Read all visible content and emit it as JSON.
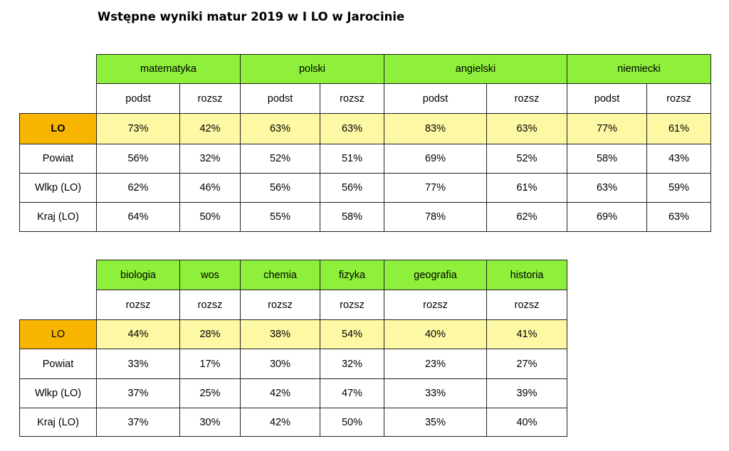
{
  "title": "Wstępne wyniki matur 2019 w I LO w Jarocinie",
  "table1": {
    "subjects": [
      "matematyka",
      "polski",
      "angielski",
      "niemiecki"
    ],
    "levels": [
      "podst",
      "rozsz",
      "podst",
      "rozsz",
      "podst",
      "rozsz",
      "podst",
      "rozsz"
    ],
    "rows": [
      {
        "label": "LO",
        "values": [
          "73%",
          "42%",
          "63%",
          "63%",
          "83%",
          "63%",
          "77%",
          "61%"
        ]
      },
      {
        "label": "Powiat",
        "values": [
          "56%",
          "32%",
          "52%",
          "51%",
          "69%",
          "52%",
          "58%",
          "43%"
        ]
      },
      {
        "label": "Wlkp (LO)",
        "values": [
          "62%",
          "46%",
          "56%",
          "56%",
          "77%",
          "61%",
          "63%",
          "59%"
        ]
      },
      {
        "label": "Kraj (LO)",
        "values": [
          "64%",
          "50%",
          "55%",
          "58%",
          "78%",
          "62%",
          "69%",
          "63%"
        ]
      }
    ]
  },
  "table2": {
    "subjects": [
      "biologia",
      "wos",
      "chemia",
      "fizyka",
      "geografia",
      "historia"
    ],
    "levels": [
      "rozsz",
      "rozsz",
      "rozsz",
      "rozsz",
      "rozsz",
      "rozsz"
    ],
    "rows": [
      {
        "label": "LO",
        "values": [
          "44%",
          "28%",
          "38%",
          "54%",
          "40%",
          "41%"
        ]
      },
      {
        "label": "Powiat",
        "values": [
          "33%",
          "17%",
          "30%",
          "32%",
          "23%",
          "27%"
        ]
      },
      {
        "label": "Wlkp (LO)",
        "values": [
          "37%",
          "25%",
          "42%",
          "47%",
          "33%",
          "39%"
        ]
      },
      {
        "label": "Kraj (LO)",
        "values": [
          "37%",
          "30%",
          "42%",
          "50%",
          "35%",
          "40%"
        ]
      }
    ]
  }
}
